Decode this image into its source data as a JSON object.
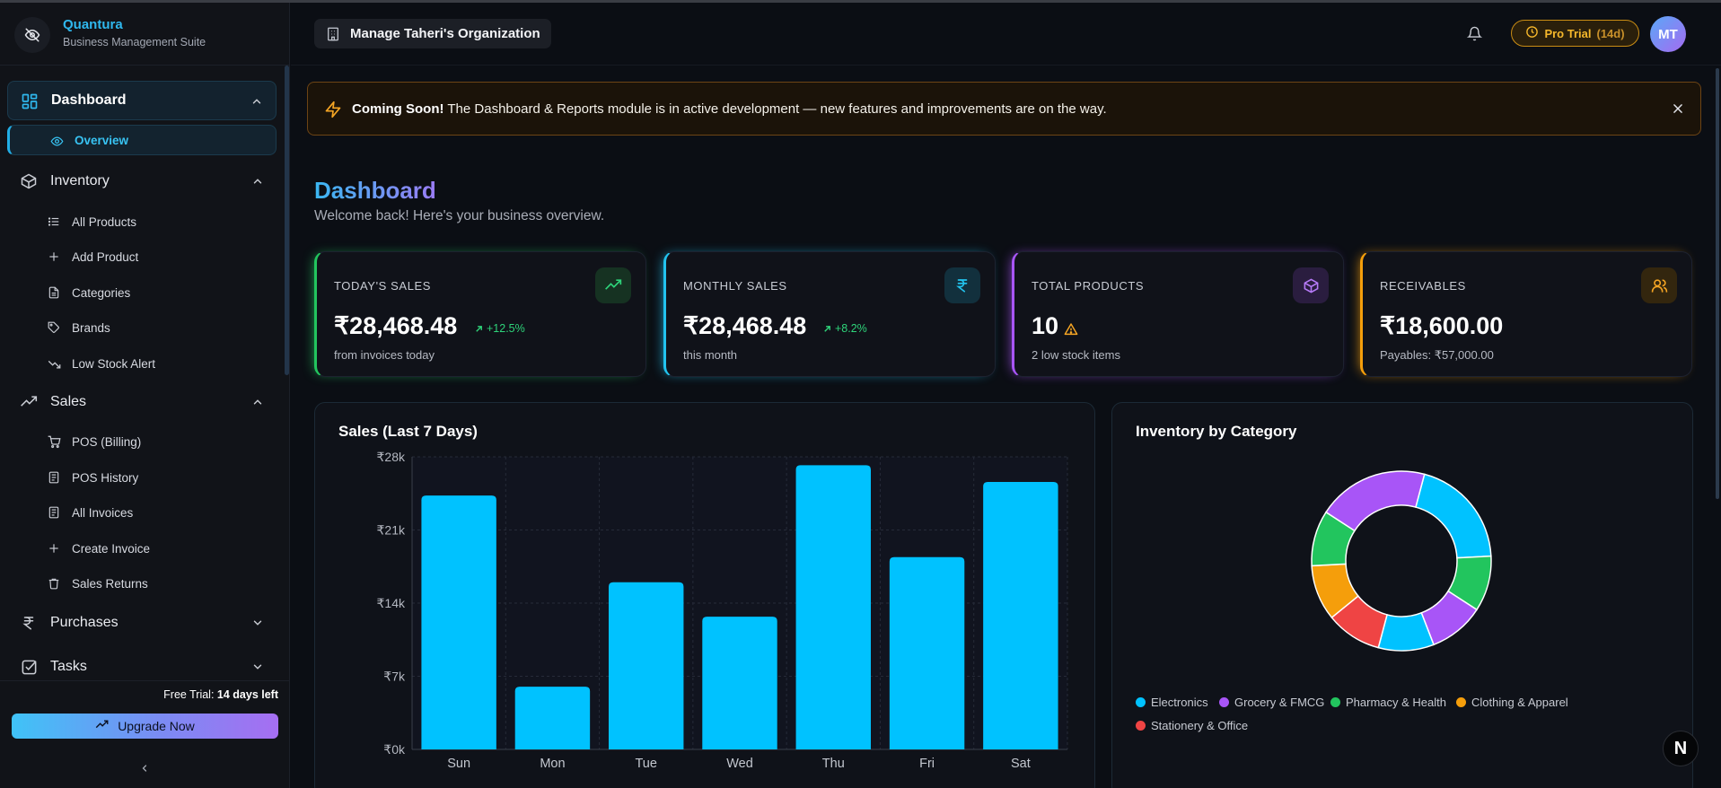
{
  "app": {
    "name": "Quantura",
    "subtitle": "Business Management Suite"
  },
  "header": {
    "org_label": "Manage Taheri's Organization",
    "pro_label": "Pro Trial",
    "pro_days": "(14d)",
    "avatar_initials": "MT"
  },
  "sidebar": {
    "groups": [
      {
        "label": "Dashboard",
        "icon": "grid-icon",
        "expanded": true,
        "active": true,
        "items": [
          {
            "label": "Overview",
            "icon": "eye-icon",
            "active": true
          }
        ]
      },
      {
        "label": "Inventory",
        "icon": "box-icon",
        "expanded": true,
        "items": [
          {
            "label": "All Products",
            "icon": "list-icon"
          },
          {
            "label": "Add Product",
            "icon": "plus-icon"
          },
          {
            "label": "Categories",
            "icon": "file-icon"
          },
          {
            "label": "Brands",
            "icon": "tag-icon"
          },
          {
            "label": "Low Stock Alert",
            "icon": "trending-down-icon"
          }
        ]
      },
      {
        "label": "Sales",
        "icon": "trending-up-icon",
        "expanded": true,
        "items": [
          {
            "label": "POS (Billing)",
            "icon": "cart-icon"
          },
          {
            "label": "POS History",
            "icon": "receipt-icon"
          },
          {
            "label": "All Invoices",
            "icon": "receipt-icon"
          },
          {
            "label": "Create Invoice",
            "icon": "plus-icon"
          },
          {
            "label": "Sales Returns",
            "icon": "trash-icon"
          }
        ]
      },
      {
        "label": "Purchases",
        "icon": "rupee-icon",
        "expanded": false,
        "items": []
      },
      {
        "label": "Tasks",
        "icon": "checkbox-icon",
        "expanded": false,
        "items": []
      }
    ],
    "trial_prefix": "Free Trial:",
    "trial_days": "14 days left",
    "upgrade_label": "Upgrade Now"
  },
  "banner": {
    "title": "Coming Soon!",
    "message": "The Dashboard & Reports module is in active development — new features and improvements are on the way."
  },
  "page": {
    "title": "Dashboard",
    "subtitle": "Welcome back! Here's your business overview."
  },
  "stats": [
    {
      "title": "TODAY'S SALES",
      "value": "₹28,468.48",
      "trend": "+12.5%",
      "note": "from invoices today",
      "accent": "#22c55e",
      "icon": "trending-up-icon"
    },
    {
      "title": "MONTHLY SALES",
      "value": "₹28,468.48",
      "trend": "+8.2%",
      "note": "this month",
      "accent": "#22c3ee",
      "icon": "rupee-icon"
    },
    {
      "title": "TOTAL PRODUCTS",
      "value": "10",
      "trend": "",
      "note": "2 low stock items",
      "accent": "#a855f7",
      "icon": "box-icon"
    },
    {
      "title": "RECEIVABLES",
      "value": "₹18,600.00",
      "trend": "",
      "note": "Payables: ₹57,000.00",
      "accent": "#f59e0b",
      "icon": "users-icon"
    }
  ],
  "charts": {
    "sales_title": "Sales (Last 7 Days)",
    "inventory_title": "Inventory by Category"
  },
  "chart_data": [
    {
      "type": "bar",
      "title": "Sales (Last 7 Days)",
      "categories": [
        "Sun",
        "Mon",
        "Tue",
        "Wed",
        "Thu",
        "Fri",
        "Sat"
      ],
      "values": [
        24300,
        6000,
        16000,
        12700,
        27200,
        18400,
        25600
      ],
      "ylim": [
        0,
        28000
      ],
      "yticks": [
        "₹0k",
        "₹7k",
        "₹14k",
        "₹21k",
        "₹28k"
      ],
      "color": "#00c2ff",
      "grid": true
    },
    {
      "type": "pie",
      "title": "Inventory by Category",
      "legend": [
        "Electronics",
        "Grocery & FMCG",
        "Pharmacy & Health",
        "Clothing & Apparel",
        "Stationery & Office"
      ],
      "legend_colors": [
        "#00c2ff",
        "#a855f7",
        "#22c55e",
        "#f59e0b",
        "#ef4444"
      ],
      "slices": [
        {
          "category": "Electronics",
          "value": 2,
          "color": "#00c2ff"
        },
        {
          "category": "Pharmacy & Health",
          "value": 1,
          "color": "#22c55e"
        },
        {
          "category": "Grocery & FMCG",
          "value": 1,
          "color": "#a855f7"
        },
        {
          "category": "Electronics",
          "value": 1,
          "color": "#00c2ff"
        },
        {
          "category": "Stationery & Office",
          "value": 1,
          "color": "#ef4444"
        },
        {
          "category": "Clothing & Apparel",
          "value": 1,
          "color": "#f59e0b"
        },
        {
          "category": "Pharmacy & Health",
          "value": 1,
          "color": "#22c55e"
        },
        {
          "category": "Grocery & FMCG",
          "value": 2,
          "color": "#a855f7"
        }
      ],
      "legend_position": "bottom-left"
    }
  ]
}
